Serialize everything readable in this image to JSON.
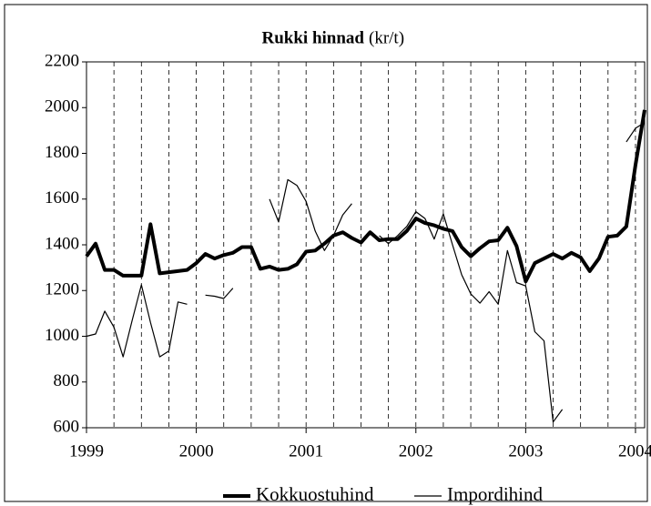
{
  "chart_data": {
    "type": "line",
    "title": "Rukki hinnad",
    "title_unit": "(kr/t)",
    "categories": [
      "1999",
      null,
      null,
      null,
      null,
      null,
      null,
      null,
      null,
      null,
      null,
      null,
      "2000",
      null,
      null,
      null,
      null,
      null,
      null,
      null,
      null,
      null,
      null,
      null,
      "2001",
      null,
      null,
      null,
      null,
      null,
      null,
      null,
      null,
      null,
      null,
      null,
      "2002",
      null,
      null,
      null,
      null,
      null,
      null,
      null,
      null,
      null,
      null,
      null,
      "2003",
      null,
      null,
      null,
      null,
      null,
      null,
      null,
      null,
      null,
      null,
      null,
      "2004",
      null
    ],
    "series": [
      {
        "name": "Kokkuostuhind",
        "color": "#000000",
        "width": 4,
        "values": [
          1350,
          1405,
          1290,
          1290,
          1265,
          1265,
          1265,
          1490,
          1275,
          1280,
          1285,
          1290,
          1320,
          1360,
          1340,
          1355,
          1365,
          1390,
          1390,
          1295,
          1305,
          1290,
          1295,
          1315,
          1370,
          1375,
          1405,
          1440,
          1455,
          1430,
          1410,
          1455,
          1420,
          1425,
          1425,
          1460,
          1515,
          1495,
          1485,
          1470,
          1460,
          1390,
          1350,
          1385,
          1415,
          1420,
          1475,
          1395,
          1240,
          1320,
          1340,
          1360,
          1340,
          1365,
          1345,
          1285,
          1340,
          1435,
          1440,
          1480,
          1750,
          1990
        ]
      },
      {
        "name": "Impordihind",
        "color": "#000000",
        "width": 1.2,
        "values": [
          1000,
          1010,
          1110,
          1040,
          910,
          1070,
          1225,
          1060,
          910,
          935,
          1150,
          1140,
          null,
          1180,
          1175,
          1165,
          1210,
          null,
          null,
          null,
          1600,
          1500,
          1685,
          1660,
          1590,
          1460,
          1375,
          1440,
          1530,
          1580,
          null,
          null,
          1440,
          1405,
          1440,
          1480,
          1545,
          1515,
          1425,
          1535,
          1400,
          1270,
          1185,
          1145,
          1195,
          1140,
          1375,
          1235,
          1220,
          1020,
          980,
          625,
          680,
          null,
          null,
          null,
          null,
          null,
          null,
          1850,
          1910,
          1935
        ]
      }
    ],
    "ylim": [
      600,
      2200
    ],
    "yticks": [
      600,
      800,
      1000,
      1200,
      1400,
      1600,
      1800,
      2000,
      2200
    ],
    "grid": true
  }
}
